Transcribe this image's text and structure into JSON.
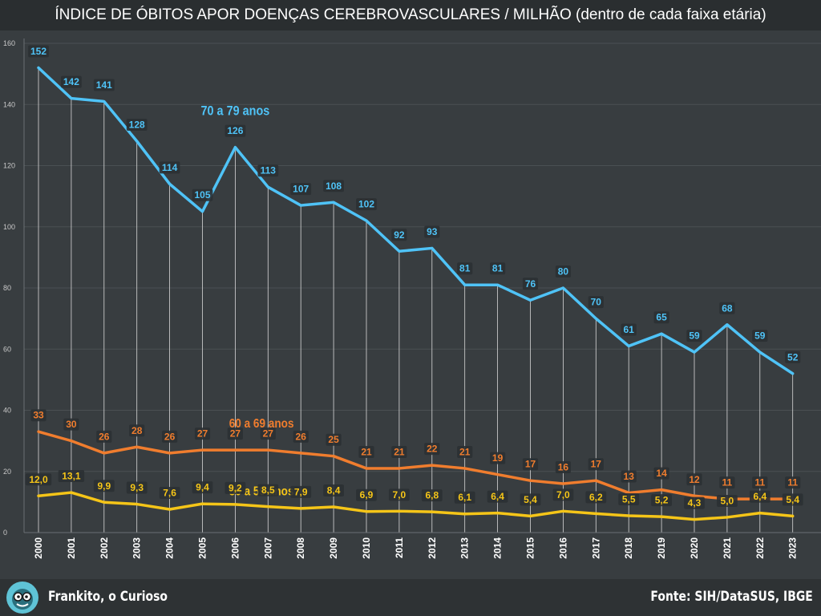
{
  "title": "ÍNDICE DE ÓBITOS APOR DOENÇAS CEREBROVASCULARES / MILHÃO (dentro de cada faixa etária)",
  "footer": {
    "brand": "Frankito, o Curioso",
    "source": "Fonte: SIH/DataSUS, IBGE",
    "avatar_icon": "cartoon-face-icon"
  },
  "chart_data": {
    "type": "line",
    "title": "ÍNDICE DE ÓBITOS APOR DOENÇAS CEREBROVASCULARES / MILHÃO (dentro de cada faixa etária)",
    "xlabel": "",
    "ylabel": "",
    "x": [
      "2000",
      "2001",
      "2002",
      "2003",
      "2004",
      "2005",
      "2006",
      "2007",
      "2008",
      "2009",
      "2010",
      "2011",
      "2012",
      "2013",
      "2014",
      "2015",
      "2016",
      "2017",
      "2018",
      "2019",
      "2020",
      "2021",
      "2022",
      "2023"
    ],
    "ylim": [
      0,
      160
    ],
    "yticks": [
      0,
      20,
      40,
      60,
      80,
      100,
      120,
      140,
      160
    ],
    "grid": true,
    "legend": "inline labels",
    "series": [
      {
        "name": "70 a 79 anos",
        "color": "#4fc3f7",
        "values": [
          152,
          142,
          141,
          128,
          114,
          105,
          126,
          113,
          107,
          108,
          102,
          92,
          93,
          81,
          81,
          76,
          80,
          70,
          61,
          65,
          59,
          68,
          59,
          52
        ],
        "labels": [
          "152",
          "142",
          "141",
          "128",
          "114",
          "105",
          "126",
          "113",
          "107",
          "108",
          "102",
          "92",
          "93",
          "81",
          "81",
          "76",
          "80",
          "70",
          "61",
          "65",
          "59",
          "68",
          "59",
          "52"
        ]
      },
      {
        "name": "60 a 69 anos",
        "color": "#f07d2e",
        "values": [
          33,
          30,
          26,
          28,
          26,
          27,
          27,
          27,
          26,
          25,
          21,
          21,
          22,
          21,
          19,
          17,
          16,
          17,
          13,
          14,
          12,
          11,
          11,
          11
        ],
        "labels": [
          "33",
          "30",
          "26",
          "28",
          "26",
          "27",
          "27",
          "27",
          "26",
          "25",
          "21",
          "21",
          "22",
          "21",
          "19",
          "17",
          "16",
          "17",
          "13",
          "14",
          "12",
          "11",
          "11",
          "11"
        ]
      },
      {
        "name": "50 a 59 anos",
        "color": "#f5c518",
        "values": [
          12.0,
          13.1,
          9.9,
          9.3,
          7.6,
          9.4,
          9.2,
          8.5,
          7.9,
          8.4,
          6.9,
          7.0,
          6.8,
          6.1,
          6.4,
          5.4,
          7.0,
          6.2,
          5.5,
          5.2,
          4.3,
          5.0,
          6.4,
          5.4
        ],
        "labels": [
          "12,0",
          "13,1",
          "9,9",
          "9,3",
          "7,6",
          "9,4",
          "9,2",
          "8,5",
          "7,9",
          "8,4",
          "6,9",
          "7,0",
          "6,8",
          "6,1",
          "6,4",
          "5,4",
          "7,0",
          "6,2",
          "5,5",
          "5,2",
          "4,3",
          "5,0",
          "6,4",
          "5,4"
        ]
      }
    ]
  }
}
